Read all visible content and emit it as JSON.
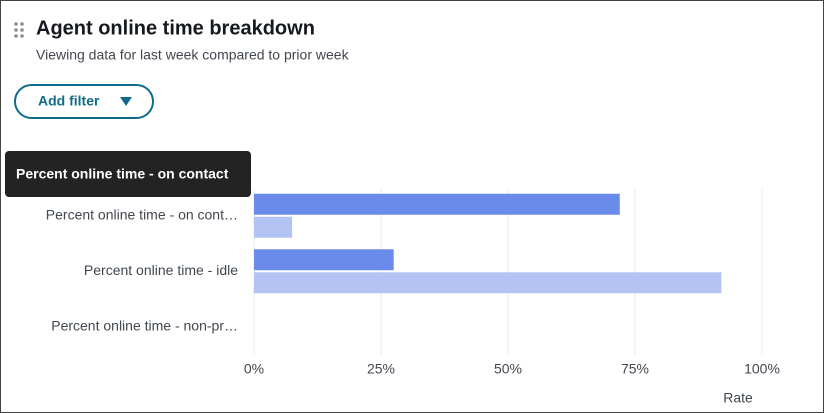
{
  "filter_button": "Add filter",
  "tooltip": "Percent online time - on contact",
  "chart_data": {
    "type": "hbar",
    "title": "Agent online time breakdown",
    "subtitle": "Viewing data for last week compared to prior week",
    "x_label": "Rate",
    "categories": [
      "Percent online time - on cont…",
      "Percent online time - idle",
      "Percent online time - non-pr…"
    ],
    "series": [
      {
        "color": "#6b8bea",
        "values": [
          72,
          27.5,
          0
        ]
      },
      {
        "color": "#b3c3f4",
        "values": [
          7.5,
          92,
          0
        ]
      }
    ],
    "xlim": [
      0,
      100
    ],
    "xticks": [
      {
        "value": 0,
        "label": "0%"
      },
      {
        "value": 25,
        "label": "25%"
      },
      {
        "value": 50,
        "label": "50%"
      },
      {
        "value": 75,
        "label": "75%"
      },
      {
        "value": 100,
        "label": "100%"
      }
    ],
    "grid": true
  }
}
